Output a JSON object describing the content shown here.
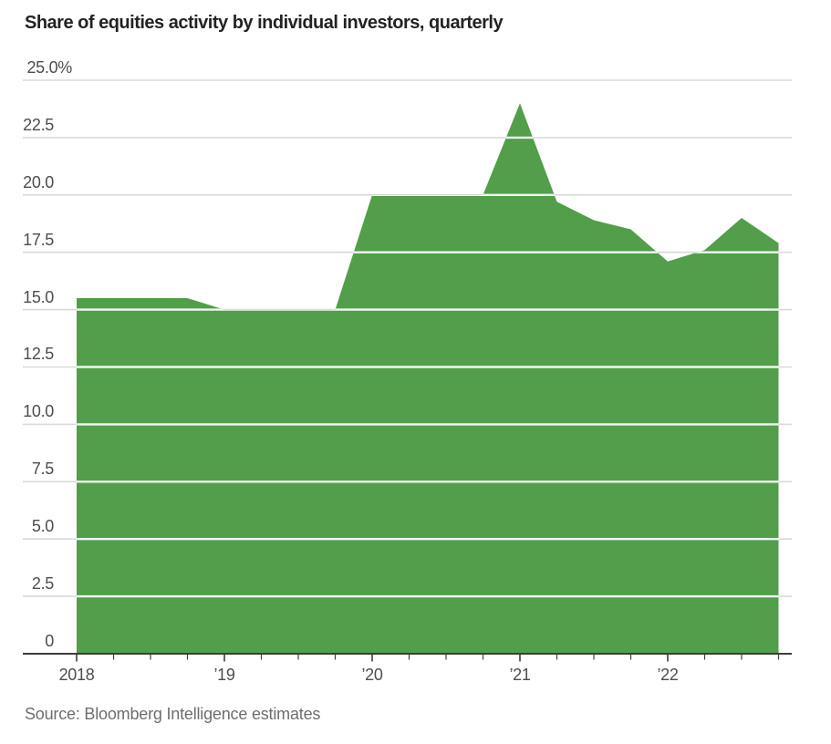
{
  "page": {
    "title": "Share of equities activity by individual investors, quarterly",
    "source": "Source: Bloomberg Intelligence estimates"
  },
  "chart_data": {
    "type": "area",
    "title": "Share of equities activity by individual investors, quarterly",
    "subtitle": "",
    "xlabel": "",
    "ylabel": "",
    "unit": "%",
    "x": [
      "2018 Q1",
      "2018 Q2",
      "2018 Q3",
      "2018 Q4",
      "2019 Q1",
      "2019 Q2",
      "2019 Q3",
      "2019 Q4",
      "2020 Q1",
      "2020 Q2",
      "2020 Q3",
      "2020 Q4",
      "2021 Q1",
      "2021 Q2",
      "2021 Q3",
      "2021 Q4",
      "2022 Q1",
      "2022 Q2",
      "2022 Q3",
      "2022 Q4"
    ],
    "values": [
      15.5,
      15.5,
      15.5,
      15.5,
      15.0,
      15.0,
      15.0,
      15.0,
      20.0,
      20.0,
      20.0,
      20.0,
      24.0,
      19.7,
      18.9,
      18.5,
      17.1,
      17.6,
      19.0,
      17.9
    ],
    "ylim": [
      0,
      25
    ],
    "y_ticks": [
      0,
      2.5,
      5,
      7.5,
      10,
      12.5,
      15,
      17.5,
      20,
      22.5,
      25
    ],
    "y_tick_labels": [
      "0",
      "2.5",
      "5.0",
      "7.5",
      "10.0",
      "12.5",
      "15.0",
      "17.5",
      "20.0",
      "22.5",
      "25.0%"
    ],
    "x_tick_labels": [
      "2018",
      "’19",
      "’20",
      "’21",
      "’22"
    ],
    "grid": true,
    "legend_position": "none",
    "source": "Source: Bloomberg Intelligence estimates",
    "colors": {
      "area": "#529e4a",
      "grid": "#d9d9d9",
      "grid_over_area": "#ffffff",
      "axis": "#3d3d3d",
      "tick_label": "#4d4d4d",
      "title": "#232323",
      "source": "#6e6e6e",
      "background": "#ffffff"
    }
  }
}
